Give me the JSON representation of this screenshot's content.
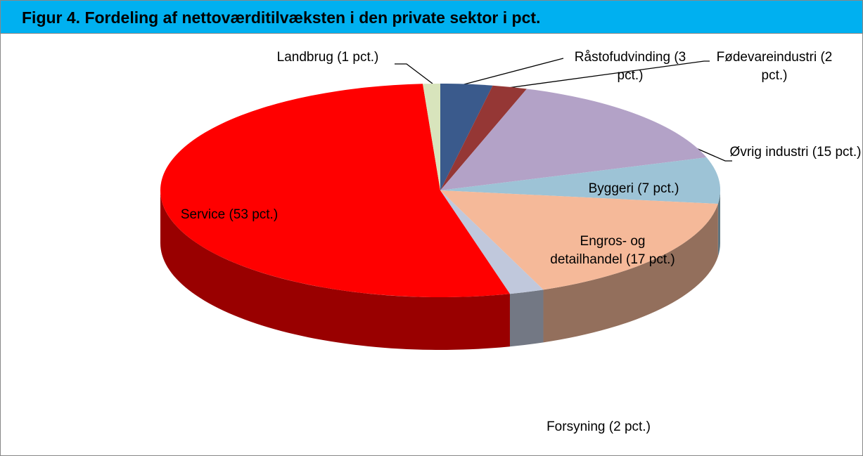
{
  "chart_data": {
    "type": "pie",
    "title": "Figur 4. Fordeling af nettoværditilvæksten i den private sektor i pct.",
    "values": [
      3,
      2,
      15,
      7,
      17,
      2,
      53,
      1
    ],
    "value_labels": [
      "Råstofudvinding (3 pct.)",
      "Fødevareindustri (2 pct.)",
      "Øvrig industri (15 pct.)",
      "Byggeri (7 pct.)",
      "Engros- og detailhandel (17 pct.)",
      "Forsyning (2 pct.)",
      "Service (53 pct.)",
      "Landbrug (1 pct.)"
    ],
    "colors": [
      "#3a5a8c",
      "#953735",
      "#b3a2c7",
      "#9dc3d6",
      "#f5b999",
      "#c0c8dc",
      "#ff0000",
      "#d8e4bc"
    ]
  }
}
